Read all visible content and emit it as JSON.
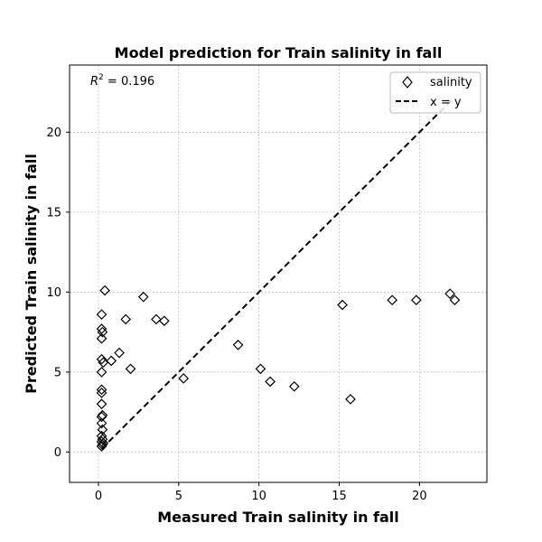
{
  "chart_data": {
    "type": "scatter",
    "title": "Model prediction for Train salinity in fall",
    "xlabel": "Measured Train salinity in fall",
    "ylabel": "Predicted Train salinity in fall",
    "xlim": [
      -1.8,
      24.2
    ],
    "ylim": [
      -1.9,
      24.2
    ],
    "xticks": [
      0,
      5,
      10,
      15,
      20
    ],
    "yticks": [
      0,
      5,
      10,
      15,
      20
    ],
    "grid": true,
    "legend_position": "top-right",
    "annotation": {
      "prefix": "R",
      "superscript": "2",
      "suffix": " = 0.196"
    },
    "series": [
      {
        "name": "salinity",
        "marker": "diamond",
        "points": [
          [
            0.2,
            0.35
          ],
          [
            0.25,
            0.45
          ],
          [
            0.3,
            0.55
          ],
          [
            0.2,
            0.65
          ],
          [
            0.25,
            0.8
          ],
          [
            0.2,
            1.0
          ],
          [
            0.25,
            1.4
          ],
          [
            0.2,
            1.8
          ],
          [
            0.2,
            2.2
          ],
          [
            0.25,
            2.3
          ],
          [
            0.2,
            3.0
          ],
          [
            0.2,
            3.7
          ],
          [
            0.2,
            3.9
          ],
          [
            0.2,
            5.0
          ],
          [
            0.3,
            5.6
          ],
          [
            0.2,
            5.8
          ],
          [
            0.8,
            5.7
          ],
          [
            1.3,
            6.2
          ],
          [
            2.0,
            5.2
          ],
          [
            0.2,
            7.1
          ],
          [
            0.25,
            7.5
          ],
          [
            0.2,
            7.7
          ],
          [
            0.2,
            8.6
          ],
          [
            0.4,
            10.1
          ],
          [
            1.7,
            8.3
          ],
          [
            2.8,
            9.7
          ],
          [
            3.6,
            8.3
          ],
          [
            4.1,
            8.2
          ],
          [
            5.3,
            4.6
          ],
          [
            8.7,
            6.7
          ],
          [
            10.1,
            5.2
          ],
          [
            10.7,
            4.4
          ],
          [
            12.2,
            4.1
          ],
          [
            15.2,
            9.2
          ],
          [
            15.7,
            3.3
          ],
          [
            18.3,
            9.5
          ],
          [
            19.8,
            9.5
          ],
          [
            21.9,
            9.9
          ],
          [
            22.2,
            9.5
          ]
        ]
      },
      {
        "name": "x = y",
        "style": "dashed-line",
        "points": [
          [
            0.2,
            0.2
          ],
          [
            22.0,
            22.0
          ]
        ]
      }
    ]
  }
}
